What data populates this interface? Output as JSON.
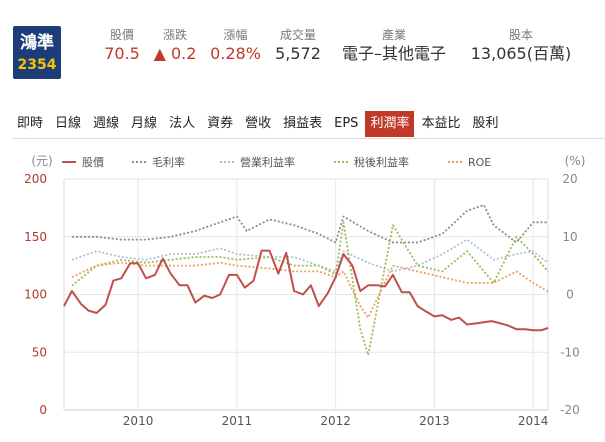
{
  "stock": {
    "name": "鴻準",
    "code": "2354"
  },
  "header": {
    "price": {
      "label": "股價",
      "value": "70.5"
    },
    "change": {
      "label": "漲跌",
      "arrow": "▲",
      "value": "0.2"
    },
    "change_pct": {
      "label": "漲幅",
      "value": "0.28%"
    },
    "volume": {
      "label": "成交量",
      "value": "5,572"
    },
    "industry": {
      "label": "產業",
      "value": "電子–其他電子"
    },
    "capital": {
      "label": "股本",
      "value": "13,065(百萬)"
    }
  },
  "tabs": [
    {
      "label": "即時",
      "active": false
    },
    {
      "label": "日線",
      "active": false
    },
    {
      "label": "週線",
      "active": false
    },
    {
      "label": "月線",
      "active": false
    },
    {
      "label": "法人",
      "active": false
    },
    {
      "label": "資券",
      "active": false
    },
    {
      "label": "營收",
      "active": false
    },
    {
      "label": "損益表",
      "active": false
    },
    {
      "label": "EPS",
      "active": false
    },
    {
      "label": "利潤率",
      "active": true
    },
    {
      "label": "本益比",
      "active": false
    },
    {
      "label": "股利",
      "active": false
    }
  ],
  "chart_data": {
    "type": "line",
    "left_unit": "(元)",
    "right_unit": "(%)",
    "left_ticks": [
      "200",
      "150",
      "100",
      "50",
      "0"
    ],
    "right_ticks": [
      "20",
      "10",
      "0",
      "-10",
      "-20"
    ],
    "x_ticks": [
      "2010",
      "2011",
      "2012",
      "2013",
      "2014"
    ],
    "xlim": [
      2009.25,
      2014.15
    ],
    "ylim_left": [
      0,
      200
    ],
    "ylim_right": [
      -20,
      20
    ],
    "series": [
      {
        "name": "股價",
        "axis": "left",
        "color": "#c0504d",
        "style": "solid",
        "x": [
          2009.25,
          2009.33,
          2009.42,
          2009.5,
          2009.58,
          2009.67,
          2009.75,
          2009.83,
          2009.92,
          2010.0,
          2010.08,
          2010.17,
          2010.25,
          2010.33,
          2010.42,
          2010.5,
          2010.58,
          2010.67,
          2010.75,
          2010.83,
          2010.92,
          2011.0,
          2011.08,
          2011.17,
          2011.25,
          2011.33,
          2011.42,
          2011.5,
          2011.58,
          2011.67,
          2011.75,
          2011.83,
          2011.92,
          2012.0,
          2012.08,
          2012.17,
          2012.25,
          2012.33,
          2012.42,
          2012.5,
          2012.58,
          2012.67,
          2012.75,
          2012.83,
          2012.92,
          2013.0,
          2013.08,
          2013.17,
          2013.25,
          2013.33,
          2013.42,
          2013.5,
          2013.58,
          2013.67,
          2013.75,
          2013.83,
          2013.92,
          2014.0,
          2014.08,
          2014.15
        ],
        "values": [
          90,
          103,
          92,
          86,
          84,
          91,
          112,
          114,
          127,
          127,
          114,
          117,
          131,
          118,
          108,
          108,
          93,
          99,
          97,
          100,
          117,
          117,
          106,
          112,
          138,
          138,
          118,
          136,
          103,
          100,
          108,
          90,
          101,
          115,
          135,
          125,
          103,
          108,
          108,
          107,
          117,
          102,
          102,
          90,
          85,
          81,
          82,
          78,
          80,
          74,
          75,
          76,
          77,
          75,
          73,
          70,
          70,
          69,
          69,
          71
        ]
      },
      {
        "name": "毛利率",
        "axis": "right",
        "color": "#8c8c8c",
        "style": "dotted",
        "x": [
          2009.33,
          2009.58,
          2009.83,
          2010.08,
          2010.33,
          2010.58,
          2010.83,
          2011.0,
          2011.1,
          2011.33,
          2011.58,
          2011.83,
          2012.0,
          2012.08,
          2012.33,
          2012.58,
          2012.83,
          2013.08,
          2013.33,
          2013.5,
          2013.6,
          2013.83,
          2014.0,
          2014.15
        ],
        "values": [
          10,
          10,
          9.5,
          9.5,
          10,
          11,
          12.5,
          13.5,
          11,
          13,
          12,
          10.5,
          9,
          13.5,
          11,
          9,
          9,
          10.5,
          14.5,
          15.5,
          12,
          9,
          12.5,
          12.5
        ]
      },
      {
        "name": "營業利益率",
        "axis": "right",
        "color": "#a9c4d3",
        "style": "dotted",
        "x": [
          2009.33,
          2009.58,
          2009.83,
          2010.08,
          2010.33,
          2010.58,
          2010.83,
          2011.0,
          2011.33,
          2011.58,
          2011.83,
          2012.0,
          2012.08,
          2012.33,
          2012.58,
          2012.83,
          2013.08,
          2013.33,
          2013.6,
          2013.83,
          2014.0,
          2014.15
        ],
        "values": [
          6,
          7.5,
          6.5,
          6,
          7,
          7,
          8,
          7,
          6.5,
          6.5,
          5,
          4,
          7.5,
          5.5,
          4,
          5,
          7,
          9.5,
          6,
          7,
          7.5,
          5.5
        ]
      },
      {
        "name": "稅後利益率",
        "axis": "right",
        "color": "#9bbb59",
        "style": "dotted",
        "x": [
          2009.33,
          2009.58,
          2009.83,
          2010.08,
          2010.33,
          2010.58,
          2010.83,
          2011.0,
          2011.33,
          2011.58,
          2011.83,
          2012.0,
          2012.08,
          2012.25,
          2012.33,
          2012.58,
          2012.83,
          2013.08,
          2013.33,
          2013.6,
          2013.83,
          2014.0,
          2014.15
        ],
        "values": [
          1.5,
          5,
          6,
          5.5,
          6,
          6.5,
          6.5,
          6,
          6.5,
          5,
          5,
          3.5,
          12.5,
          -6,
          -10.5,
          12,
          5,
          4,
          7.5,
          2,
          10,
          7,
          4
        ]
      },
      {
        "name": "ROE",
        "axis": "right",
        "color": "#f0a05a",
        "style": "dotted",
        "x": [
          2009.33,
          2009.58,
          2009.83,
          2010.08,
          2010.33,
          2010.58,
          2010.83,
          2011.0,
          2011.33,
          2011.58,
          2011.83,
          2012.0,
          2012.08,
          2012.25,
          2012.33,
          2012.58,
          2012.83,
          2013.08,
          2013.33,
          2013.6,
          2013.83,
          2014.0,
          2014.15
        ],
        "values": [
          3,
          5,
          5.5,
          5,
          5,
          5,
          5.5,
          5,
          4.5,
          4,
          4,
          3,
          4,
          -2,
          -4,
          5,
          4,
          3,
          2,
          2,
          4,
          2,
          0.5
        ]
      }
    ]
  }
}
